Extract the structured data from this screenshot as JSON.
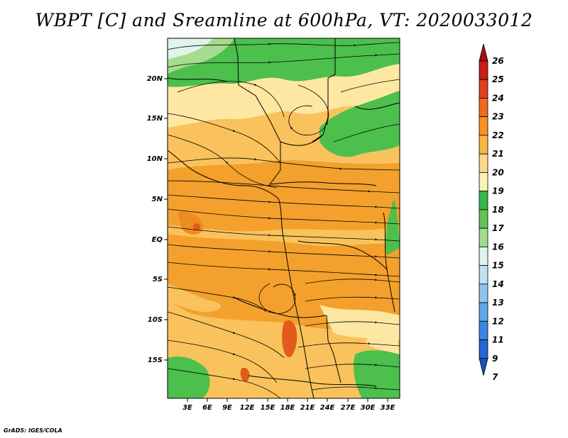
{
  "title": "WBPT [C] and Sreamline at 600hPa, VT: 2020033012",
  "footer": "GrADS: IGES/COLA",
  "lat_labels": [
    "20N",
    "15N",
    "10N",
    "5N",
    "EQ",
    "5S",
    "10S",
    "15S"
  ],
  "lon_labels": [
    "3E",
    "6E",
    "9E",
    "12E",
    "15E",
    "18E",
    "21E",
    "24E",
    "27E",
    "30E",
    "33E"
  ],
  "colorbar": {
    "labels": [
      "26",
      "25",
      "24",
      "23",
      "22",
      "21",
      "20",
      "19",
      "18",
      "17",
      "16",
      "15",
      "14",
      "13",
      "12",
      "11",
      "9",
      "7"
    ],
    "colors": [
      "#a50f15",
      "#c81e14",
      "#e0401a",
      "#f06a1c",
      "#f7921e",
      "#f9b845",
      "#fcd88a",
      "#fef2b0",
      "#39b54a",
      "#62c455",
      "#9fdc8f",
      "#dff5e9",
      "#bfdff5",
      "#8ec4ef",
      "#5fa6ea",
      "#3a86e0",
      "#2366d4",
      "#1c4fc2"
    ]
  },
  "legend_colors": {
    "green": "#4cbf4c",
    "light_green": "#a5dc8f",
    "pale_yellow": "#fde7a3",
    "light_orange": "#f9c25c",
    "orange": "#f3a12c",
    "dark_orange": "#ee8b1f",
    "red_orange": "#e35a1e"
  }
}
